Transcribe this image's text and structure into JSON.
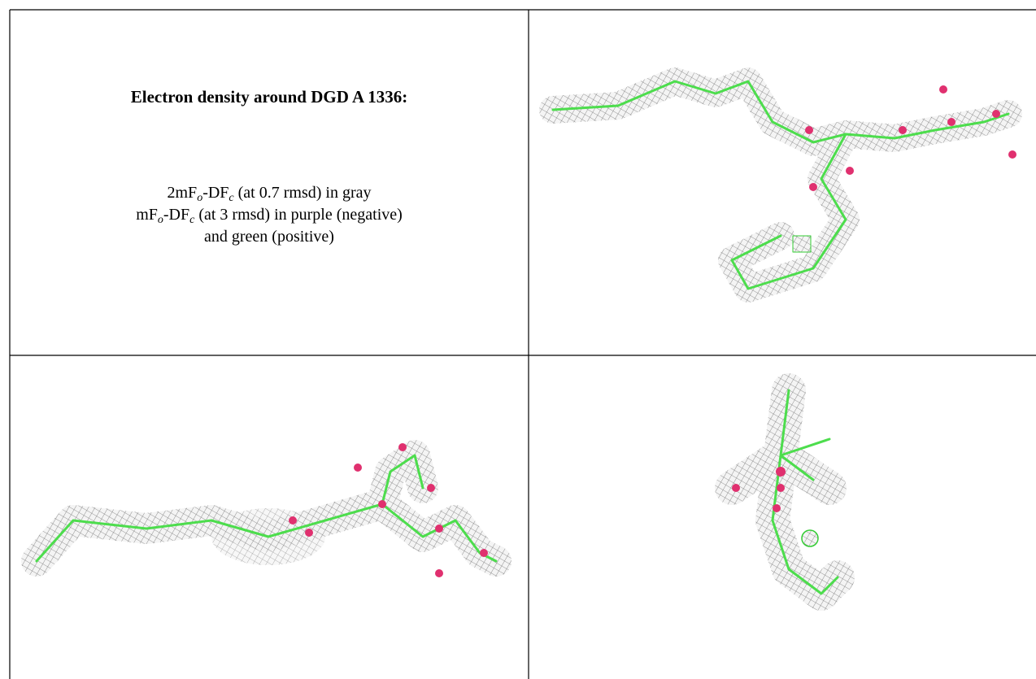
{
  "heading": "Electron density around DGD A 1336:",
  "caption": [
    [
      "2mF",
      "o",
      "-DF",
      "c",
      " (at 0.7 rmsd) in gray"
    ],
    [
      "mF",
      "o",
      "-DF",
      "c",
      " (at 3 rmsd) in purple (negative)"
    ],
    [
      "and green (positive)"
    ]
  ]
}
